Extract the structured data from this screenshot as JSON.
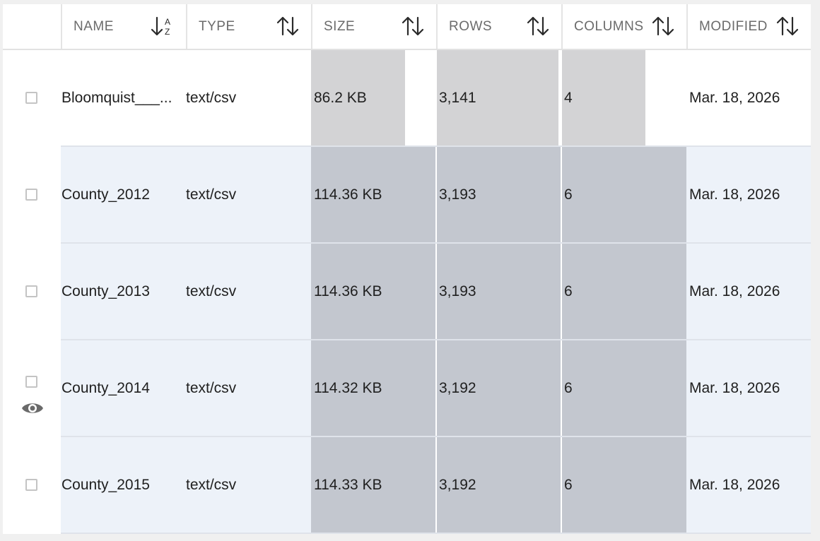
{
  "table": {
    "columns": [
      {
        "key": "name",
        "label": "NAME",
        "sort_icon": "sort-alpha-icon"
      },
      {
        "key": "type",
        "label": "TYPE",
        "sort_icon": "sort-arrows-icon"
      },
      {
        "key": "size",
        "label": "SIZE",
        "sort_icon": "sort-arrows-icon"
      },
      {
        "key": "rows",
        "label": "ROWS",
        "sort_icon": "sort-arrows-icon"
      },
      {
        "key": "columns",
        "label": "COLUMNS",
        "sort_icon": "sort-arrows-icon"
      },
      {
        "key": "modified",
        "label": "MODIFIED",
        "sort_icon": "sort-arrows-icon"
      }
    ],
    "rows": [
      {
        "name": "Bloomquist___...",
        "type": "text/csv",
        "size": "86.2 KB",
        "rows": "3,141",
        "columns": "4",
        "modified": "Mar. 18, 2026",
        "size_fraction": 0.75,
        "rows_fraction": 0.98,
        "columns_fraction": 0.67
      },
      {
        "name": "County_2012",
        "type": "text/csv",
        "size": "114.36 KB",
        "rows": "3,193",
        "columns": "6",
        "modified": "Mar. 18, 2026",
        "size_fraction": 1.0,
        "rows_fraction": 1.0,
        "columns_fraction": 1.0
      },
      {
        "name": "County_2013",
        "type": "text/csv",
        "size": "114.36 KB",
        "rows": "3,193",
        "columns": "6",
        "modified": "Mar. 18, 2026",
        "size_fraction": 1.0,
        "rows_fraction": 1.0,
        "columns_fraction": 1.0
      },
      {
        "name": "County_2014",
        "type": "text/csv",
        "size": "114.32 KB",
        "rows": "3,192",
        "columns": "6",
        "modified": "Mar. 18, 2026",
        "size_fraction": 1.0,
        "rows_fraction": 1.0,
        "columns_fraction": 1.0,
        "preview_icon": "eye-icon"
      },
      {
        "name": "County_2015",
        "type": "text/csv",
        "size": "114.33 KB",
        "rows": "3,192",
        "columns": "6",
        "modified": "Mar. 18, 2026",
        "size_fraction": 1.0,
        "rows_fraction": 1.0,
        "columns_fraction": 1.0
      }
    ]
  },
  "colors": {
    "row_alt_bg": "#edf2f9",
    "bar_first": "#d3d3d5",
    "bar_alt": "#c3c7cf"
  }
}
